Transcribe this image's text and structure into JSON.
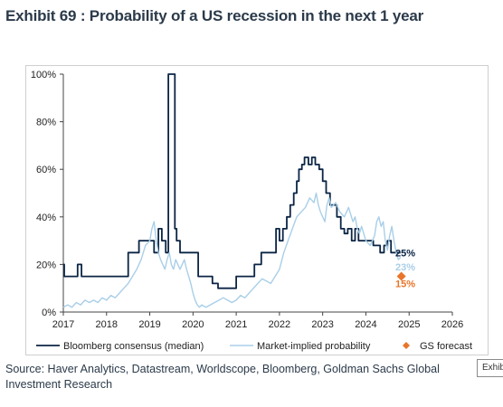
{
  "title": "Exhibit 69 : Probability of a US recession in the next 1 year",
  "source": "Source: Haver Analytics, Datastream, Worldscope, Bloomberg, Goldman Sachs Global Investment Research",
  "tooltip": "Exhibit",
  "chart_data": {
    "type": "line",
    "title": "",
    "xlabel": "",
    "ylabel": "",
    "xlim": [
      2017.0,
      2026.0
    ],
    "ylim": [
      0,
      100
    ],
    "xticks": [
      "2017",
      "2018",
      "2019",
      "2020",
      "2021",
      "2022",
      "2023",
      "2024",
      "2025",
      "2026"
    ],
    "yticks": [
      "0%",
      "20%",
      "40%",
      "60%",
      "80%",
      "100%"
    ],
    "grid": "horizontal",
    "legend_position": "bottom",
    "series": [
      {
        "name": "Bloomberg consensus (median)",
        "color": "#0b2545",
        "style": "step",
        "x": [
          2017.0,
          2017.02,
          2017.33,
          2017.42,
          2018.5,
          2018.75,
          2018.92,
          2019.1,
          2019.2,
          2019.28,
          2019.37,
          2019.43,
          2019.58,
          2019.62,
          2019.7,
          2020.0,
          2020.12,
          2020.3,
          2020.45,
          2020.58,
          2020.75,
          2020.88,
          2021.0,
          2021.08,
          2021.15,
          2021.2,
          2021.42,
          2021.58,
          2021.75,
          2021.92,
          2022.0,
          2022.08,
          2022.17,
          2022.25,
          2022.33,
          2022.4,
          2022.45,
          2022.52,
          2022.58,
          2022.67,
          2022.75,
          2022.83,
          2022.92,
          2023.0,
          2023.08,
          2023.17,
          2023.25,
          2023.33,
          2023.42,
          2023.5,
          2023.58,
          2023.67,
          2023.75,
          2023.83,
          2024.0,
          2024.17,
          2024.33,
          2024.42,
          2024.5,
          2024.58,
          2024.67,
          2024.75,
          2024.8
        ],
        "y": [
          20,
          15,
          20,
          15,
          25,
          30,
          30,
          25,
          35,
          30,
          25,
          100,
          35,
          30,
          25,
          25,
          15,
          15,
          12,
          10,
          10,
          10,
          15,
          15,
          15,
          15,
          20,
          25,
          25,
          35,
          30,
          35,
          40,
          45,
          50,
          55,
          60,
          62,
          65,
          62,
          65,
          62,
          60,
          55,
          50,
          45,
          45,
          40,
          35,
          33,
          35,
          30,
          35,
          30,
          30,
          28,
          25,
          28,
          30,
          25,
          25,
          25,
          25
        ]
      },
      {
        "name": "Market-implied probability",
        "color": "#a9cfe8",
        "style": "line",
        "x": [
          2017.0,
          2017.1,
          2017.2,
          2017.3,
          2017.4,
          2017.5,
          2017.6,
          2017.7,
          2017.8,
          2017.9,
          2018.0,
          2018.1,
          2018.2,
          2018.3,
          2018.4,
          2018.5,
          2018.6,
          2018.7,
          2018.8,
          2018.9,
          2019.0,
          2019.05,
          2019.1,
          2019.15,
          2019.2,
          2019.25,
          2019.3,
          2019.35,
          2019.4,
          2019.45,
          2019.5,
          2019.55,
          2019.6,
          2019.65,
          2019.7,
          2019.75,
          2019.8,
          2019.85,
          2019.9,
          2019.95,
          2020.0,
          2020.05,
          2020.1,
          2020.15,
          2020.2,
          2020.3,
          2020.4,
          2020.5,
          2020.6,
          2020.7,
          2020.8,
          2020.9,
          2021.0,
          2021.1,
          2021.2,
          2021.3,
          2021.4,
          2021.5,
          2021.6,
          2021.7,
          2021.8,
          2021.9,
          2022.0,
          2022.1,
          2022.2,
          2022.3,
          2022.4,
          2022.5,
          2022.6,
          2022.7,
          2022.8,
          2022.85,
          2022.9,
          2022.95,
          2023.0,
          2023.05,
          2023.1,
          2023.15,
          2023.2,
          2023.3,
          2023.4,
          2023.5,
          2023.6,
          2023.7,
          2023.75,
          2023.8,
          2023.85,
          2023.9,
          2024.0,
          2024.1,
          2024.2,
          2024.25,
          2024.3,
          2024.35,
          2024.4,
          2024.45,
          2024.5,
          2024.55,
          2024.6,
          2024.65,
          2024.7,
          2024.75,
          2024.8
        ],
        "y": [
          2,
          3,
          2,
          4,
          3,
          5,
          4,
          5,
          4,
          6,
          5,
          7,
          6,
          8,
          10,
          12,
          15,
          18,
          22,
          28,
          30,
          35,
          38,
          30,
          25,
          22,
          20,
          18,
          22,
          25,
          20,
          18,
          22,
          20,
          18,
          20,
          22,
          18,
          15,
          12,
          8,
          5,
          3,
          2,
          3,
          2,
          3,
          4,
          5,
          6,
          5,
          4,
          5,
          7,
          6,
          8,
          10,
          12,
          14,
          13,
          12,
          15,
          18,
          25,
          30,
          35,
          40,
          42,
          44,
          48,
          46,
          50,
          45,
          42,
          40,
          38,
          45,
          48,
          44,
          46,
          42,
          40,
          44,
          38,
          40,
          35,
          33,
          36,
          30,
          28,
          32,
          38,
          40,
          36,
          38,
          30,
          26,
          32,
          36,
          30,
          25,
          22,
          23
        ]
      },
      {
        "name": "GS forecast",
        "color": "#e8752b",
        "style": "marker",
        "x": [
          2024.82
        ],
        "y": [
          15
        ]
      }
    ],
    "end_labels": [
      {
        "text": "25%",
        "color": "#0b2545",
        "y": 25
      },
      {
        "text": "23%",
        "color": "#a9cfe8",
        "y": 19
      },
      {
        "text": "15%",
        "color": "#e8752b",
        "y": 12
      }
    ]
  }
}
